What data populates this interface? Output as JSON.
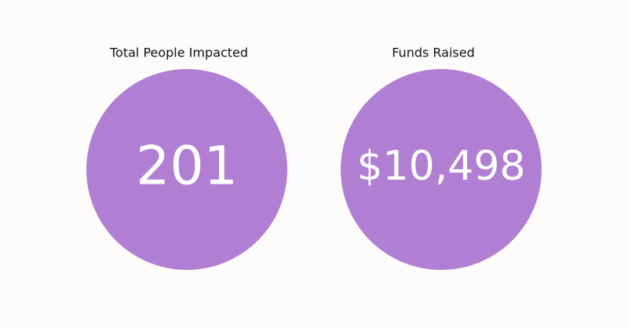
{
  "stats": [
    {
      "label": "Total People Impacted",
      "value": "201"
    },
    {
      "label": "Funds Raised",
      "value": "$10,498"
    }
  ]
}
